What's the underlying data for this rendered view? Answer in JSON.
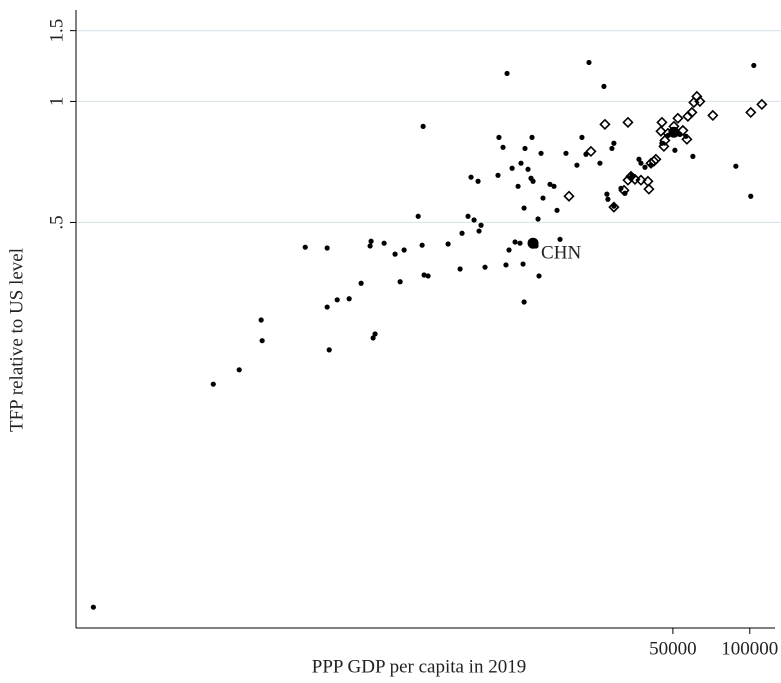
{
  "chart_data": {
    "type": "scatter",
    "x_label": "PPP GDP per capita in 2019",
    "y_label": "TFP relative to US level",
    "xscale": "log",
    "yscale": "log",
    "grid": true,
    "xlim": [
      230,
      120000
    ],
    "xticks": [
      50000,
      100000
    ],
    "ylim": [
      0.049,
      1.65
    ],
    "yticks": [
      {
        "value": 0.5,
        "label": ".5"
      },
      1,
      1.5
    ],
    "series": [
      {
        "marker": "dot",
        "color": "#000000",
        "x": [
          269,
          793,
          1002,
          1221,
          1232,
          1817,
          2214,
          2214,
          2255,
          2424,
          2700,
          3007,
          3261,
          3290,
          3350,
          3410,
          3700,
          4084,
          4275,
          4432,
          5030,
          5212,
          5260,
          5306,
          5500,
          6587,
          7340,
          7470,
          7885,
          8100,
          8325,
          8630,
          8706,
          8865,
          9190,
          10330,
          10420,
          10810,
          11100,
          11210,
          11410,
          11730,
          12050,
          12380,
          12600,
          12710,
          12950,
          13070,
          13070,
          13180,
          13540,
          13910,
          14040,
          14170,
          14550,
          14820,
          14950,
          15230,
          15500,
          16510,
          17120,
          17590,
          18070,
          19070,
          21050,
          22020,
          22830,
          23460,
          25900,
          26850,
          27580,
          27830,
          28850,
          29370,
          29370,
          31310,
          32460,
          34570,
          36820,
          37490,
          38870,
          41020,
          45290,
          47800,
          50910,
          53260,
          56220,
          59870,
          88200,
          100900,
          103700
        ],
        "values": [
          0.0552,
          0.198,
          0.215,
          0.286,
          0.254,
          0.434,
          0.432,
          0.308,
          0.241,
          0.321,
          0.323,
          0.353,
          0.437,
          0.449,
          0.258,
          0.264,
          0.444,
          0.417,
          0.356,
          0.427,
          0.518,
          0.439,
          0.867,
          0.37,
          0.368,
          0.442,
          0.383,
          0.47,
          0.518,
          0.648,
          0.507,
          0.633,
          0.476,
          0.492,
          0.387,
          0.655,
          0.814,
          0.769,
          0.392,
          1.174,
          0.427,
          0.682,
          0.447,
          0.615,
          0.444,
          0.702,
          0.394,
          0.543,
          0.317,
          0.764,
          0.678,
          0.644,
          0.814,
          0.633,
          0.437,
          0.51,
          0.368,
          0.743,
          0.575,
          0.622,
          0.615,
          0.536,
          0.454,
          0.743,
          0.694,
          0.814,
          0.739,
          1.25,
          0.702,
          1.09,
          0.588,
          0.571,
          0.764,
          0.787,
          0.549,
          0.608,
          0.591,
          0.655,
          0.718,
          0.702,
          0.686,
          0.694,
          0.787,
          0.823,
          0.756,
          0.828,
          0.819,
          0.73,
          0.69,
          0.581,
          1.229
        ]
      },
      {
        "marker": "diamond",
        "color": "#000000",
        "x": [
          19590,
          23880,
          27090,
          29370,
          32170,
          33340,
          33340,
          34260,
          35520,
          37490,
          39920,
          40280,
          41020,
          42130,
          42890,
          44890,
          45290,
          46100,
          46510,
          47800,
          50450,
          52300,
          54710,
          56720,
          57230,
          59340,
          60400,
          62060,
          63760,
          71680,
          100900,
          111500
        ],
        "values": [
          0.581,
          0.751,
          0.877,
          0.546,
          0.601,
          0.887,
          0.637,
          0.651,
          0.64,
          0.637,
          0.633,
          0.605,
          0.702,
          0.71,
          0.718,
          0.843,
          0.887,
          0.773,
          0.8,
          0.833,
          0.867,
          0.908,
          0.847,
          0.805,
          0.918,
          0.939,
          0.994,
          1.029,
          1.0,
          0.923,
          0.939,
          0.983
        ]
      },
      {
        "name": "CHN",
        "marker": "big-dot",
        "color": "#000000",
        "x": [
          14170
        ],
        "values": [
          0.444
        ]
      },
      {
        "marker": "big-dot",
        "color": "#000000",
        "x": [
          50450
        ],
        "values": [
          0.838
        ]
      }
    ]
  }
}
